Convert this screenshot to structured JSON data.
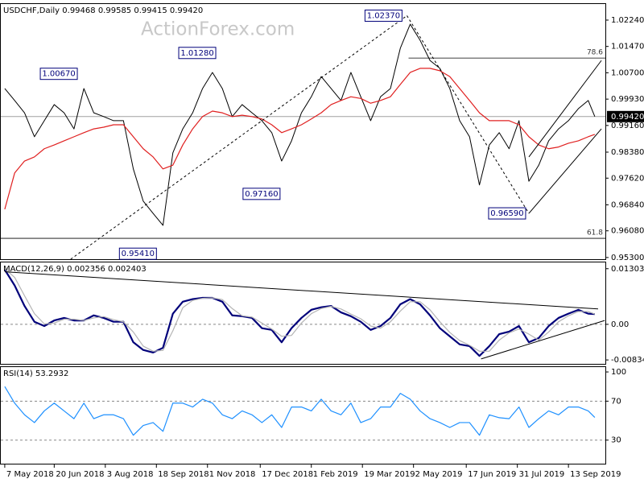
{
  "chart_data": [
    {
      "type": "line",
      "title": "USDCHF,Daily  0.99468 0.99585 0.99415 0.99420",
      "watermark": "ActionForex.com",
      "x": [
        0,
        6,
        12,
        18,
        24,
        30,
        36,
        42,
        48,
        54,
        60,
        66,
        72,
        78,
        84,
        90,
        96,
        102,
        108,
        114,
        120,
        126,
        132,
        138,
        144,
        150,
        156,
        162,
        168,
        174,
        180,
        186,
        192,
        198,
        204,
        210,
        216,
        222,
        228,
        234,
        240,
        246,
        252,
        258,
        264,
        270,
        276,
        282,
        288,
        294,
        300,
        306,
        312,
        318,
        324,
        330,
        336,
        342,
        348,
        354,
        358
      ],
      "xlim": [
        -2.4,
        364.4
      ],
      "ylim": [
        0.9525,
        1.0271
      ],
      "yticks": [
        {
          "value": 1.0224,
          "label": "1.02240"
        },
        {
          "value": 1.0147,
          "label": "1.01470"
        },
        {
          "value": 1.007,
          "label": "1.00700"
        },
        {
          "value": 0.9993,
          "label": "0.99930"
        },
        {
          "value": 0.9916,
          "label": "0.99160"
        },
        {
          "value": 0.9838,
          "label": "0.98380"
        },
        {
          "value": 0.9762,
          "label": "0.97620"
        },
        {
          "value": 0.9684,
          "label": "0.96840"
        },
        {
          "value": 0.9608,
          "label": "0.96080"
        },
        {
          "value": 0.953,
          "label": "0.95300"
        }
      ],
      "grid": false,
      "series": [
        {
          "color": "#000000",
          "values": [
            1.0024,
            0.9989,
            0.9953,
            0.9883,
            0.993,
            0.9977,
            0.9953,
            0.9906,
            1.0024,
            0.9953,
            0.9942,
            0.993,
            0.993,
            0.9789,
            0.9695,
            0.9659,
            0.9624,
            0.9836,
            0.9906,
            0.9953,
            1.0024,
            1.0071,
            1.0024,
            0.9942,
            0.9977,
            0.9953,
            0.993,
            0.9895,
            0.9812,
            0.9871,
            0.9953,
            1.0,
            1.0059,
            1.0024,
            0.9989,
            1.0071,
            1.0,
            0.993,
            1.0,
            1.0024,
            1.0142,
            1.0212,
            1.0165,
            1.0106,
            1.0083,
            1.0024,
            0.993,
            0.9883,
            0.9742,
            0.9859,
            0.9895,
            0.9848,
            0.993,
            0.9753,
            0.98,
            0.9871,
            0.9906,
            0.993,
            0.9965,
            0.9989,
            0.9942
          ]
        },
        {
          "color": "#e02020",
          "values": [
            0.9671,
            0.9777,
            0.9812,
            0.9824,
            0.9848,
            0.9859,
            0.9871,
            0.9883,
            0.9895,
            0.9906,
            0.9911,
            0.9918,
            0.9918,
            0.9883,
            0.9848,
            0.9824,
            0.9789,
            0.98,
            0.9859,
            0.9906,
            0.9942,
            0.9958,
            0.9953,
            0.9942,
            0.9946,
            0.9942,
            0.9935,
            0.9918,
            0.9895,
            0.9906,
            0.9918,
            0.9935,
            0.9953,
            0.9977,
            0.9989,
            1.0,
            0.9995,
            0.9981,
            0.9989,
            1.0,
            1.0036,
            1.0071,
            1.0083,
            1.0083,
            1.0076,
            1.0059,
            1.0024,
            0.9989,
            0.9953,
            0.993,
            0.993,
            0.993,
            0.9918,
            0.9883,
            0.9859,
            0.9848,
            0.9853,
            0.9864,
            0.9871,
            0.9883,
            0.989
          ]
        }
      ],
      "last_price": {
        "value": 0.9942,
        "label": "0.99420"
      },
      "annotations": [
        {
          "x": 45,
          "y": 1.0067,
          "label": "1.00670"
        },
        {
          "x": 93,
          "y": 0.9541,
          "label": "0.95410"
        },
        {
          "x": 129,
          "y": 1.0128,
          "label": "1.01280"
        },
        {
          "x": 168,
          "y": 0.9716,
          "label": "0.97160"
        },
        {
          "x": 242,
          "y": 1.0237,
          "label": "1.02370"
        },
        {
          "x": 317,
          "y": 0.9659,
          "label": "0.96590"
        }
      ],
      "fib_levels": [
        {
          "ratio": 78.6,
          "price": 1.0113,
          "from": 245
        },
        {
          "ratio": 61.8,
          "price": 0.9586,
          "from": -2.4
        }
      ],
      "trendlines": [
        {
          "x": [
            40,
            244
          ],
          "y": [
            0.9525,
            1.0237
          ],
          "dashed": true
        },
        {
          "x": [
            244,
            318
          ],
          "y": [
            1.0237,
            0.9659
          ],
          "dashed": true
        },
        {
          "x": [
            318,
            362
          ],
          "y": [
            0.9659,
            0.9906
          ],
          "dashed": false
        },
        {
          "x": [
            318,
            362
          ],
          "y": [
            0.9824,
            1.0106
          ],
          "dashed": false
        }
      ]
    },
    {
      "type": "line",
      "title": "MACD(12,26,9) 0.002356 0.002403",
      "x": [
        0,
        6,
        12,
        18,
        24,
        30,
        36,
        42,
        48,
        54,
        60,
        66,
        72,
        78,
        84,
        90,
        96,
        102,
        108,
        114,
        120,
        126,
        132,
        138,
        144,
        150,
        156,
        162,
        168,
        174,
        180,
        186,
        192,
        198,
        204,
        210,
        216,
        222,
        228,
        234,
        240,
        246,
        252,
        258,
        264,
        270,
        276,
        282,
        288,
        294,
        300,
        306,
        312,
        318,
        324,
        330,
        336,
        342,
        348,
        354,
        358
      ],
      "xlim": [
        -2.4,
        364.4
      ],
      "ylim": [
        -0.00926,
        0.0145
      ],
      "yticks": [
        0.013034,
        {
          "value": 0,
          "label": "0.00"
        },
        -0.00834
      ],
      "levels": [
        0
      ],
      "series": [
        {
          "color": "#00007a",
          "values": [
            0.0128,
            0.0091,
            0.0043,
            0.0006,
            -0.0004,
            0.0009,
            0.0015,
            0.0009,
            0.0009,
            0.0021,
            0.0015,
            0.0006,
            0.0006,
            -0.0042,
            -0.006,
            -0.0066,
            -0.0055,
            0.0025,
            0.0053,
            0.0059,
            0.0062,
            0.0062,
            0.0053,
            0.0021,
            0.0019,
            0.0015,
            -0.0009,
            -0.0013,
            -0.0042,
            -0.0009,
            0.0015,
            0.0034,
            0.004,
            0.0043,
            0.0028,
            0.0019,
            0.0006,
            -0.0013,
            -0.0004,
            0.0015,
            0.0047,
            0.0059,
            0.0047,
            0.0021,
            -0.0009,
            -0.0028,
            -0.0047,
            -0.0051,
            -0.0074,
            -0.0051,
            -0.0023,
            -0.0017,
            -0.0004,
            -0.0042,
            -0.0032,
            -0.0004,
            0.0015,
            0.0025,
            0.0034,
            0.0025,
            0.0024
          ]
        },
        {
          "color": "#b4b4b4",
          "values": [
            0.013,
            0.011,
            0.0067,
            0.0025,
            0.0001,
            0.0003,
            0.0012,
            0.0012,
            0.0009,
            0.0015,
            0.0018,
            0.0011,
            0.0006,
            -0.0018,
            -0.0051,
            -0.0063,
            -0.0061,
            -0.0015,
            0.0039,
            0.0056,
            0.0061,
            0.0062,
            0.0058,
            0.0037,
            0.002,
            0.0017,
            0.0003,
            -0.0011,
            -0.0028,
            -0.0026,
            0.0003,
            0.0025,
            0.0037,
            0.0042,
            0.0036,
            0.0024,
            0.0013,
            -0.0004,
            -0.0009,
            0.0006,
            0.0031,
            0.0053,
            0.0053,
            0.0034,
            0.0006,
            -0.0019,
            -0.0038,
            -0.0049,
            -0.0063,
            -0.0063,
            -0.0037,
            -0.002,
            -0.0011,
            -0.0023,
            -0.0037,
            -0.0018,
            0.0006,
            0.002,
            0.003,
            0.003,
            0.0024
          ]
        }
      ],
      "trendlines": [
        {
          "x": [
            0,
            360
          ],
          "y": [
            0.0123,
            0.0036
          ],
          "dashed": false
        },
        {
          "x": [
            289,
            364
          ],
          "y": [
            -0.0081,
            0.0009
          ],
          "dashed": false
        }
      ]
    },
    {
      "type": "line",
      "title": "RSI(14) 53.2932",
      "x": [
        0,
        6,
        12,
        18,
        24,
        30,
        36,
        42,
        48,
        54,
        60,
        66,
        72,
        78,
        84,
        90,
        96,
        102,
        108,
        114,
        120,
        126,
        132,
        138,
        144,
        150,
        156,
        162,
        168,
        174,
        180,
        186,
        192,
        198,
        204,
        210,
        216,
        222,
        228,
        234,
        240,
        246,
        252,
        258,
        264,
        270,
        276,
        282,
        288,
        294,
        300,
        306,
        312,
        318,
        324,
        330,
        336,
        342,
        348,
        354,
        358
      ],
      "xlim": [
        -2.4,
        364.4
      ],
      "ylim": [
        5.8,
        105
      ],
      "yticks": [
        100,
        70,
        30
      ],
      "levels": [
        70,
        30
      ],
      "xticks": [
        {
          "value": 0,
          "label": "7 May 2018"
        },
        {
          "value": 30,
          "label": "20 Jun 2018"
        },
        {
          "value": 61,
          "label": "3 Aug 2018"
        },
        {
          "value": 92,
          "label": "18 Sep 2018"
        },
        {
          "value": 123,
          "label": "1 Nov 2018"
        },
        {
          "value": 155,
          "label": "17 Dec 2018"
        },
        {
          "value": 186,
          "label": "1 Feb 2019"
        },
        {
          "value": 217,
          "label": "19 Mar 2019"
        },
        {
          "value": 248,
          "label": "2 May 2019"
        },
        {
          "value": 280,
          "label": "17 Jun 2019"
        },
        {
          "value": 311,
          "label": "31 Jul 2019"
        },
        {
          "value": 342,
          "label": "13 Sep 2019"
        }
      ],
      "series": [
        {
          "color": "#1e90ff",
          "values": [
            85,
            68,
            56,
            48,
            60,
            68,
            60,
            52,
            68,
            52,
            56,
            56,
            52,
            35,
            45,
            48,
            39,
            68,
            68,
            64,
            72,
            68,
            56,
            52,
            60,
            56,
            48,
            56,
            43,
            64,
            64,
            60,
            72,
            60,
            56,
            68,
            48,
            52,
            64,
            64,
            78,
            72,
            60,
            52,
            48,
            43,
            48,
            48,
            35,
            56,
            53,
            52,
            64,
            43,
            52,
            60,
            56,
            64,
            64,
            60,
            53.3
          ]
        }
      ]
    }
  ]
}
